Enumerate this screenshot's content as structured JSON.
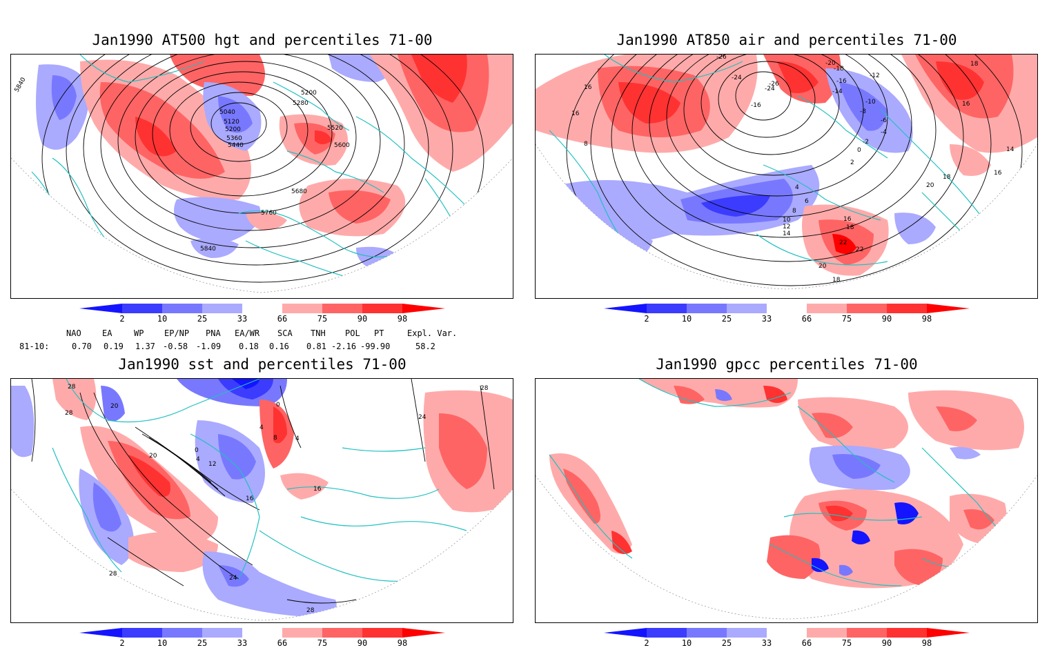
{
  "panels": [
    {
      "id": "hgt500",
      "title": "Jan1990 AT500 hgt and percentiles 71-00",
      "contour_labels": [
        "5840",
        "5200",
        "5280",
        "5040",
        "5120",
        "5200",
        "5360",
        "5440",
        "5520",
        "5600",
        "5680",
        "5760",
        "5840"
      ]
    },
    {
      "id": "air850",
      "title": "Jan1990 AT850 air and percentiles 71-00",
      "contour_labels": [
        "-26",
        "-20",
        "-18",
        "-24",
        "-26",
        "-24",
        "-16",
        "-14",
        "-12",
        "-10",
        "-16",
        "-8",
        "-6",
        "-4",
        "-2",
        "0",
        "2",
        "16",
        "16",
        "8",
        "18",
        "16",
        "14",
        "16",
        "18",
        "20",
        "4",
        "6",
        "8",
        "10",
        "12",
        "14",
        "16",
        "18",
        "22",
        "22",
        "20",
        "18"
      ]
    },
    {
      "id": "sst",
      "title": "Jan1990 sst and percentiles 71-00",
      "contour_labels": [
        "28",
        "28",
        "20",
        "20",
        "0",
        "4",
        "8",
        "4",
        "0",
        "4",
        "12",
        "16",
        "16",
        "24",
        "28",
        "24",
        "28",
        "28"
      ]
    },
    {
      "id": "gpcc",
      "title": "Jan1990 gpcc percentiles 71-00",
      "contour_labels": []
    }
  ],
  "colorbar": {
    "ticks": [
      "2",
      "10",
      "25",
      "33",
      "66",
      "75",
      "90",
      "98"
    ],
    "colors": [
      "#1414ff",
      "#3c3cff",
      "#7878ff",
      "#aaaaff",
      "#ffffff",
      "#ffaaaa",
      "#ff6464",
      "#ff3232",
      "#ff0000"
    ]
  },
  "teleconnection_indices": {
    "headers": [
      "NAO",
      "EA",
      "WP",
      "EP/NP",
      "PNA",
      "EA/WR",
      "SCA",
      "TNH",
      "POL",
      "PT",
      "Expl. Var."
    ],
    "row_label": "81-10:",
    "values": [
      "0.70",
      "0.19",
      "1.37",
      "-0.58",
      "-1.09",
      "0.18",
      "0.16",
      "0.81",
      "-2.16",
      "-99.90",
      "58.2"
    ]
  },
  "colors": {
    "coast": "#20c0c0",
    "blue_light": "#aaaaff",
    "blue_mid": "#7878ff",
    "blue_dark": "#3c3cff",
    "blue_deep": "#1414ff",
    "red_light": "#ffaaaa",
    "red_mid": "#ff6464",
    "red_dark": "#ff3232",
    "red_deep": "#ff0000"
  }
}
